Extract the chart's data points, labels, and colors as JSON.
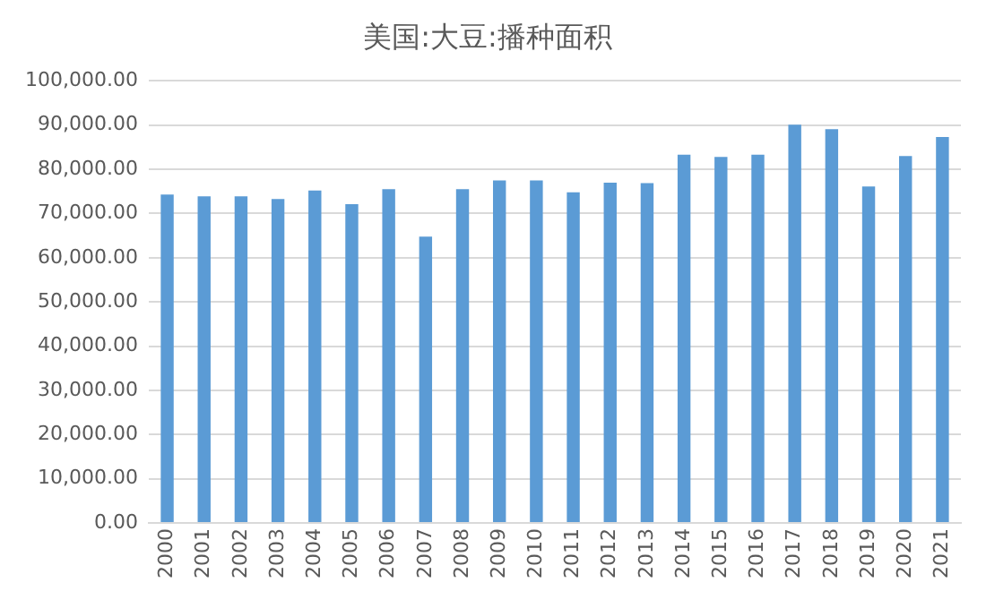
{
  "chart_data": {
    "type": "bar",
    "title": "美国:大豆:播种面积",
    "categories": [
      "2000",
      "2001",
      "2002",
      "2003",
      "2004",
      "2005",
      "2006",
      "2007",
      "2008",
      "2009",
      "2010",
      "2011",
      "2012",
      "2013",
      "2014",
      "2015",
      "2016",
      "2017",
      "2018",
      "2019",
      "2020",
      "2021"
    ],
    "values": [
      74300,
      73900,
      73900,
      73300,
      75200,
      72100,
      75500,
      64800,
      75500,
      77500,
      77500,
      74800,
      77000,
      76900,
      83300,
      82800,
      83300,
      90100,
      89100,
      76100,
      83000,
      87300
    ],
    "color": "#5b9bd5",
    "ylim": [
      0,
      100000
    ],
    "yticks": [
      {
        "value": 0,
        "label": "0.00"
      },
      {
        "value": 10000,
        "label": "10,000.00"
      },
      {
        "value": 20000,
        "label": "20,000.00"
      },
      {
        "value": 30000,
        "label": "30,000.00"
      },
      {
        "value": 40000,
        "label": "40,000.00"
      },
      {
        "value": 50000,
        "label": "50,000.00"
      },
      {
        "value": 60000,
        "label": "60,000.00"
      },
      {
        "value": 70000,
        "label": "70,000.00"
      },
      {
        "value": 80000,
        "label": "80,000.00"
      },
      {
        "value": 90000,
        "label": "90,000.00"
      },
      {
        "value": 100000,
        "label": "100,000.00"
      }
    ],
    "grid": "y",
    "legend": false
  }
}
